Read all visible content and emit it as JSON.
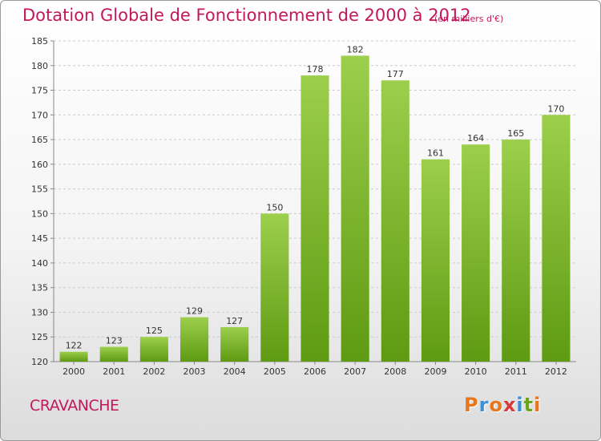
{
  "chart_data": {
    "type": "bar",
    "title": "Dotation Globale de Fonctionnement de 2000 à 2012",
    "subtitle": "(en milliers d'€)",
    "categories": [
      "2000",
      "2001",
      "2002",
      "2003",
      "2004",
      "2005",
      "2006",
      "2007",
      "2008",
      "2009",
      "2010",
      "2011",
      "2012"
    ],
    "values": [
      122,
      123,
      125,
      129,
      127,
      150,
      178,
      182,
      177,
      161,
      164,
      165,
      170
    ],
    "ylim": [
      120,
      185
    ],
    "yticks": [
      120,
      125,
      130,
      135,
      140,
      145,
      150,
      155,
      160,
      165,
      170,
      175,
      180,
      185
    ],
    "grid": true,
    "colors": {
      "bar_light": "#9ccf4c",
      "bar_dark": "#5e9a12",
      "title": "#c2185b"
    }
  },
  "footer": {
    "commune": "CRAVANCHE",
    "logo_text": "Proxiti",
    "logo_colors": [
      "#e8761c",
      "#3a8fd6",
      "#e8761c",
      "#d63a3a",
      "#3a8fd6",
      "#6aa51c",
      "#e8761c"
    ]
  }
}
